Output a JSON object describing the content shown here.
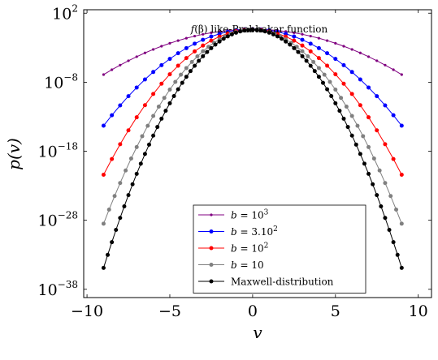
{
  "chart_data": {
    "type": "line",
    "title": "",
    "annotation": {
      "prefix": "f",
      "arg": "(β)",
      "rest": " like-Prabhakar function"
    },
    "xlabel": "v",
    "ylabel": "p(v)",
    "xlim": [
      -10.2,
      10.8
    ],
    "ylim_log10": [
      -39.2,
      2.5
    ],
    "y_scale": "log",
    "x_ticks": [
      {
        "value": -10,
        "label": "−10"
      },
      {
        "value": -5,
        "label": "−5"
      },
      {
        "value": 0,
        "label": "0"
      },
      {
        "value": 5,
        "label": "5"
      },
      {
        "value": 10,
        "label": "10"
      }
    ],
    "y_ticks": [
      {
        "value": 2,
        "base": "10",
        "exp": "2"
      },
      {
        "value": -8,
        "base": "10",
        "exp": "−8"
      },
      {
        "value": -18,
        "base": "10",
        "exp": "−18"
      },
      {
        "value": -28,
        "base": "10",
        "exp": "−28"
      },
      {
        "value": -38,
        "base": "10",
        "exp": "−38"
      }
    ],
    "legend_position": "bottom-center",
    "series": [
      {
        "name": "b = 10³",
        "legend": {
          "pre": "b",
          "mid": " = 10",
          "sup": "3"
        },
        "color": "#800080",
        "x_range": [
          -9,
          9
        ],
        "points": 37,
        "log10_peak": -0.33,
        "log10_at_edge": -6.9,
        "marker_r": 1.6
      },
      {
        "name": "b = 3.10²",
        "legend": {
          "pre": "b",
          "mid": " = 3.10",
          "sup": "2"
        },
        "color": "#0000ff",
        "x_range": [
          -9,
          9
        ],
        "points": 37,
        "log10_peak": -0.3,
        "log10_at_edge": -14.3,
        "marker_r": 2.5
      },
      {
        "name": "b = 10²",
        "legend": {
          "pre": "b",
          "mid": " = 10",
          "sup": "2"
        },
        "color": "#ff0000",
        "x_range": [
          -9,
          9
        ],
        "points": 37,
        "log10_peak": -0.35,
        "log10_at_edge": -21.4,
        "marker_r": 2.5
      },
      {
        "name": "b = 10",
        "legend": {
          "pre": "b",
          "mid": " = 10",
          "sup": ""
        },
        "color": "#808080",
        "x_range": [
          -9,
          9
        ],
        "points": 55,
        "log10_peak": -0.4,
        "log10_at_edge": -28.5,
        "marker_r": 2.5
      },
      {
        "name": "Maxwell-distribution",
        "legend": {
          "pre": "",
          "mid": "Maxwell-distribution",
          "sup": ""
        },
        "color": "#000000",
        "x_range": [
          -9,
          9
        ],
        "points": 73,
        "log10_peak": -0.4,
        "log10_at_edge": -34.9,
        "marker_r": 2.5
      }
    ]
  }
}
